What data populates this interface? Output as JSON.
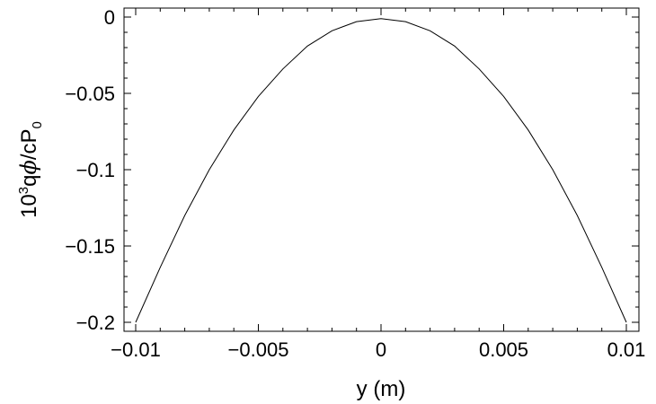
{
  "chart_data": {
    "type": "line",
    "title": "",
    "xlabel": "y (m)",
    "ylabel": {
      "prefix": "10",
      "exponent": "3",
      "middle": "q",
      "phi": "ϕ",
      "tail": "/cP",
      "subscript": "0"
    },
    "xlim": [
      -0.01,
      0.01
    ],
    "ylim": [
      -0.2,
      0.0
    ],
    "x_ticks": [
      {
        "value": -0.01,
        "label": "−0.01"
      },
      {
        "value": -0.005,
        "label": "−0.005"
      },
      {
        "value": 0,
        "label": "0"
      },
      {
        "value": 0.005,
        "label": "0.005"
      },
      {
        "value": 0.01,
        "label": "0.01"
      }
    ],
    "y_ticks": [
      {
        "value": 0,
        "label": "0"
      },
      {
        "value": -0.05,
        "label": "−0.05"
      },
      {
        "value": -0.1,
        "label": "−0.1"
      },
      {
        "value": -0.15,
        "label": "−0.15"
      },
      {
        "value": -0.2,
        "label": "−0.2"
      }
    ],
    "grid": false,
    "series": [
      {
        "color": "#000000",
        "x": [
          -0.01,
          -0.009,
          -0.008,
          -0.007,
          -0.006,
          -0.005,
          -0.004,
          -0.003,
          -0.002,
          -0.001,
          0,
          0.001,
          0.002,
          0.003,
          0.004,
          0.005,
          0.006,
          0.007,
          0.008,
          0.009,
          0.01
        ],
        "y": [
          -0.2,
          -0.164,
          -0.13,
          -0.1,
          -0.074,
          -0.052,
          -0.034,
          -0.019,
          -0.009,
          -0.003,
          -0.001,
          -0.003,
          -0.009,
          -0.019,
          -0.034,
          -0.052,
          -0.074,
          -0.1,
          -0.13,
          -0.164,
          -0.2
        ]
      }
    ]
  }
}
